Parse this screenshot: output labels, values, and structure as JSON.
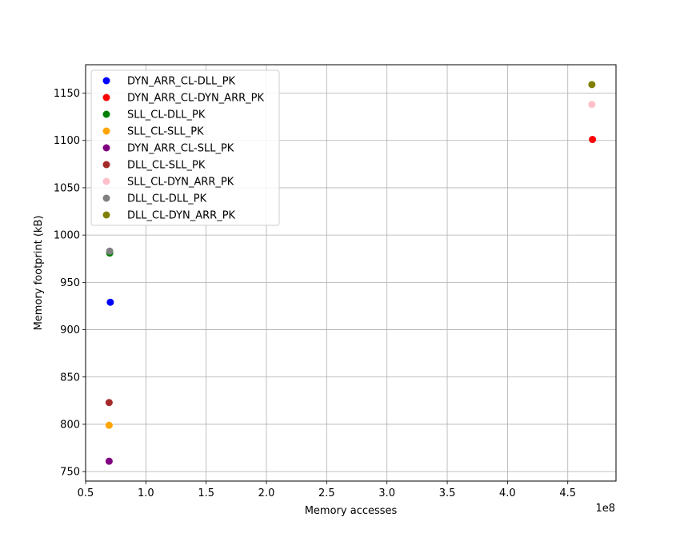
{
  "chart_data": {
    "type": "scatter",
    "xlabel": "Memory accesses",
    "ylabel": "Memory footprint (kB)",
    "x_offset_label": "1e8",
    "xlim": [
      0.5,
      4.9
    ],
    "ylim": [
      740,
      1180
    ],
    "x_ticks": [
      0.5,
      1.0,
      1.5,
      2.0,
      2.5,
      3.0,
      3.5,
      4.0,
      4.5
    ],
    "x_tick_labels": [
      "0.5",
      "1.0",
      "1.5",
      "2.0",
      "2.5",
      "3.0",
      "3.5",
      "4.0",
      "4.5"
    ],
    "y_ticks": [
      750,
      800,
      850,
      900,
      950,
      1000,
      1050,
      1100,
      1150
    ],
    "y_tick_labels": [
      "750",
      "800",
      "850",
      "900",
      "950",
      "1000",
      "1050",
      "1100",
      "1150"
    ],
    "grid": true,
    "legend_position": "upper-left",
    "series": [
      {
        "name": "DYN_ARR_CL-DLL_PK",
        "color": "#0000ff",
        "x": [
          0.705
        ],
        "y": [
          929
        ]
      },
      {
        "name": "DYN_ARR_CL-DYN_ARR_PK",
        "color": "#ff0000",
        "x": [
          4.705
        ],
        "y": [
          1101
        ]
      },
      {
        "name": "SLL_CL-DLL_PK",
        "color": "#008000",
        "x": [
          0.7
        ],
        "y": [
          981
        ]
      },
      {
        "name": "SLL_CL-SLL_PK",
        "color": "#ffa500",
        "x": [
          0.695
        ],
        "y": [
          799
        ]
      },
      {
        "name": "DYN_ARR_CL-SLL_PK",
        "color": "#800080",
        "x": [
          0.695
        ],
        "y": [
          761
        ]
      },
      {
        "name": "DLL_CL-SLL_PK",
        "color": "#a52a2a",
        "x": [
          0.695
        ],
        "y": [
          823
        ]
      },
      {
        "name": "SLL_CL-DYN_ARR_PK",
        "color": "#ffc0cb",
        "x": [
          4.7
        ],
        "y": [
          1138
        ]
      },
      {
        "name": "DLL_CL-DLL_PK",
        "color": "#808080",
        "x": [
          0.7
        ],
        "y": [
          983
        ]
      },
      {
        "name": "DLL_CL-DYN_ARR_PK",
        "color": "#808000",
        "x": [
          4.7
        ],
        "y": [
          1159
        ]
      }
    ]
  }
}
